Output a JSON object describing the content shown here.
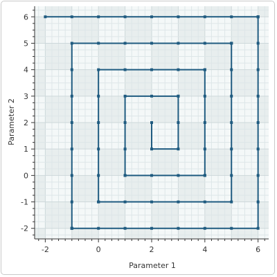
{
  "chart_data": {
    "type": "line",
    "title": "",
    "xlabel": "Parameter 1",
    "ylabel": "Parameter 2",
    "xlim": [
      -2.4,
      6.4
    ],
    "ylim": [
      -2.4,
      6.4
    ],
    "xticks": [
      -2,
      0,
      2,
      4,
      6
    ],
    "yticks": [
      -2,
      -1,
      0,
      1,
      2,
      3,
      4,
      5,
      6
    ],
    "minor_step": 0.25,
    "major_band_step": 1,
    "grid": true,
    "series": [
      {
        "color": "#1f5b80",
        "x": [
          2,
          2,
          3,
          3,
          3,
          3,
          2,
          1,
          1,
          1,
          1,
          1,
          2,
          3,
          4,
          4,
          4,
          4,
          4,
          4,
          4,
          3,
          2,
          1,
          0,
          0,
          0,
          0,
          0,
          0,
          0,
          0,
          1,
          2,
          3,
          4,
          5,
          5,
          5,
          5,
          5,
          5,
          5,
          5,
          5,
          4,
          3,
          2,
          1,
          0,
          -1,
          -1,
          -1,
          -1,
          -1,
          -1,
          -1,
          -1,
          -1,
          -1,
          0,
          1,
          2,
          3,
          4,
          5,
          6,
          6,
          6,
          6,
          6,
          6,
          6,
          6,
          6,
          6,
          6,
          5,
          4,
          3,
          2,
          1,
          0,
          -1,
          -2
        ],
        "y": [
          2,
          1,
          1,
          2,
          3,
          3,
          3,
          3,
          2,
          1,
          0,
          0,
          0,
          0,
          0,
          0,
          1,
          2,
          3,
          4,
          4,
          4,
          4,
          4,
          4,
          3,
          2,
          1,
          0,
          -1,
          -1,
          -1,
          -1,
          -1,
          -1,
          -1,
          -1,
          0,
          1,
          2,
          3,
          4,
          5,
          5,
          5,
          5,
          5,
          5,
          5,
          5,
          5,
          4,
          3,
          2,
          1,
          0,
          -1,
          -2,
          -2,
          -2,
          -2,
          -2,
          -2,
          -2,
          -2,
          -2,
          -2,
          -1,
          0,
          1,
          2,
          3,
          4,
          5,
          6,
          6,
          6,
          6,
          6,
          6,
          6,
          6,
          6,
          6,
          6
        ]
      }
    ]
  },
  "colors": {
    "plot_bg_light": "#f4f8f8",
    "plot_bg_dark": "#e8eeee",
    "minor_grid": "#dde6e8",
    "major_grid": "#cdd8da",
    "axis": "#333333"
  }
}
